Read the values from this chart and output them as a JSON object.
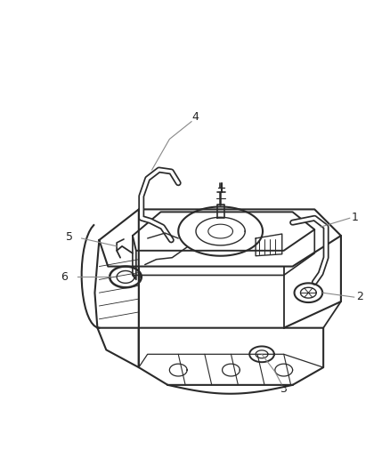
{
  "background_color": "#ffffff",
  "line_color": "#2a2a2a",
  "label_color": "#666666",
  "figsize": [
    4.38,
    5.33
  ],
  "dpi": 100
}
